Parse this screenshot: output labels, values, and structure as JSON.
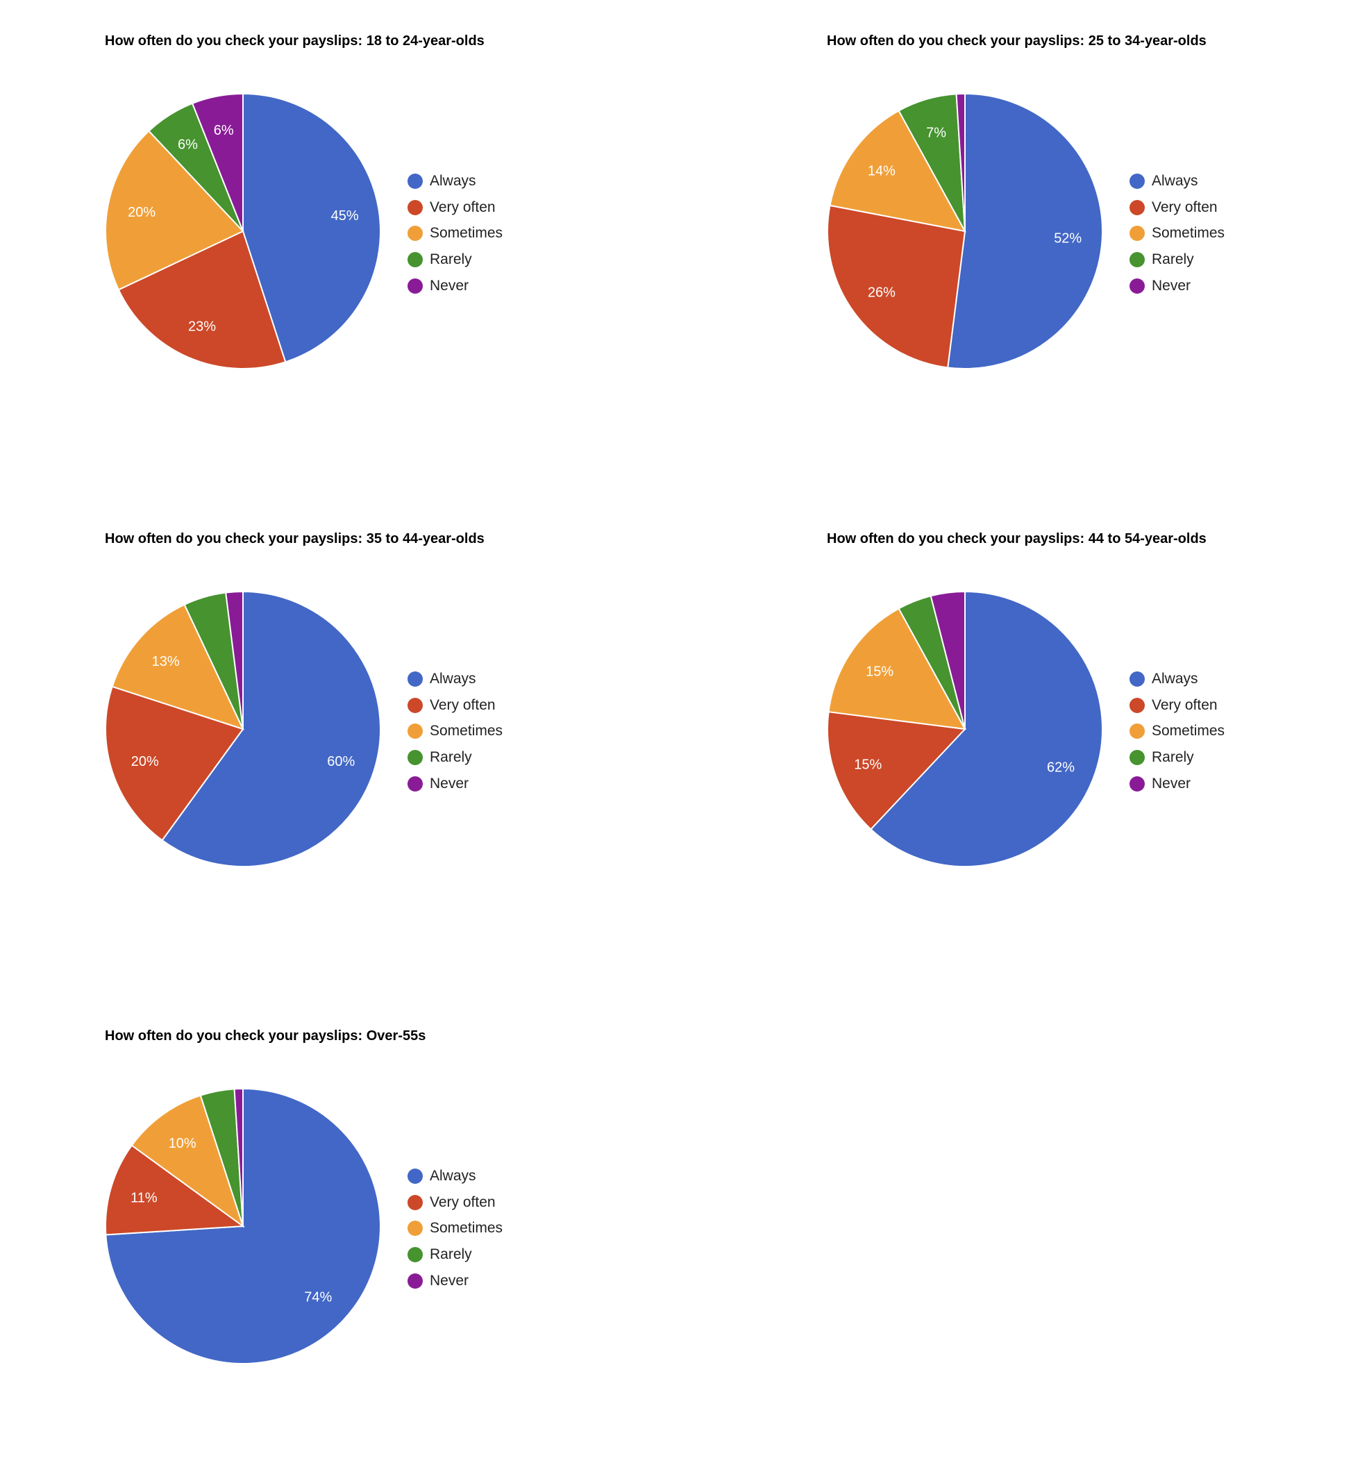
{
  "chart_data": [
    {
      "type": "pie",
      "title": "How often do you check your payslips: 18 to 24-year-olds",
      "categories": [
        "Always",
        "Very often",
        "Sometimes",
        "Rarely",
        "Never"
      ],
      "values": [
        45,
        23,
        20,
        6,
        6
      ],
      "slice_labels": [
        "45%",
        "23%",
        "20%",
        "6%",
        "6%"
      ],
      "legend": "right"
    },
    {
      "type": "pie",
      "title": "How often do you check your payslips: 25 to 34-year-olds",
      "categories": [
        "Always",
        "Very often",
        "Sometimes",
        "Rarely",
        "Never"
      ],
      "values": [
        52,
        26,
        14,
        7,
        1
      ],
      "slice_labels": [
        "52%",
        "26%",
        "14%",
        "7%",
        ""
      ],
      "legend": "right"
    },
    {
      "type": "pie",
      "title": "How often do you check your payslips: 35 to 44-year-olds",
      "categories": [
        "Always",
        "Very often",
        "Sometimes",
        "Rarely",
        "Never"
      ],
      "values": [
        60,
        20,
        13,
        5,
        2
      ],
      "slice_labels": [
        "60%",
        "20%",
        "13%",
        "",
        ""
      ],
      "legend": "right"
    },
    {
      "type": "pie",
      "title": "How often do you check your payslips: 44 to 54-year-olds",
      "categories": [
        "Always",
        "Very often",
        "Sometimes",
        "Rarely",
        "Never"
      ],
      "values": [
        62,
        15,
        15,
        4,
        4
      ],
      "slice_labels": [
        "62%",
        "15%",
        "15%",
        "",
        ""
      ],
      "legend": "right"
    },
    {
      "type": "pie",
      "title": "How often do you check your payslips: Over-55s",
      "categories": [
        "Always",
        "Very often",
        "Sometimes",
        "Rarely",
        "Never"
      ],
      "values": [
        74,
        11,
        10,
        4,
        1
      ],
      "slice_labels": [
        "74%",
        "11%",
        "10%",
        "",
        ""
      ],
      "legend": "right"
    }
  ],
  "colors": [
    "#4267c6",
    "#cc4828",
    "#f09f38",
    "#46932f",
    "#891c96"
  ]
}
